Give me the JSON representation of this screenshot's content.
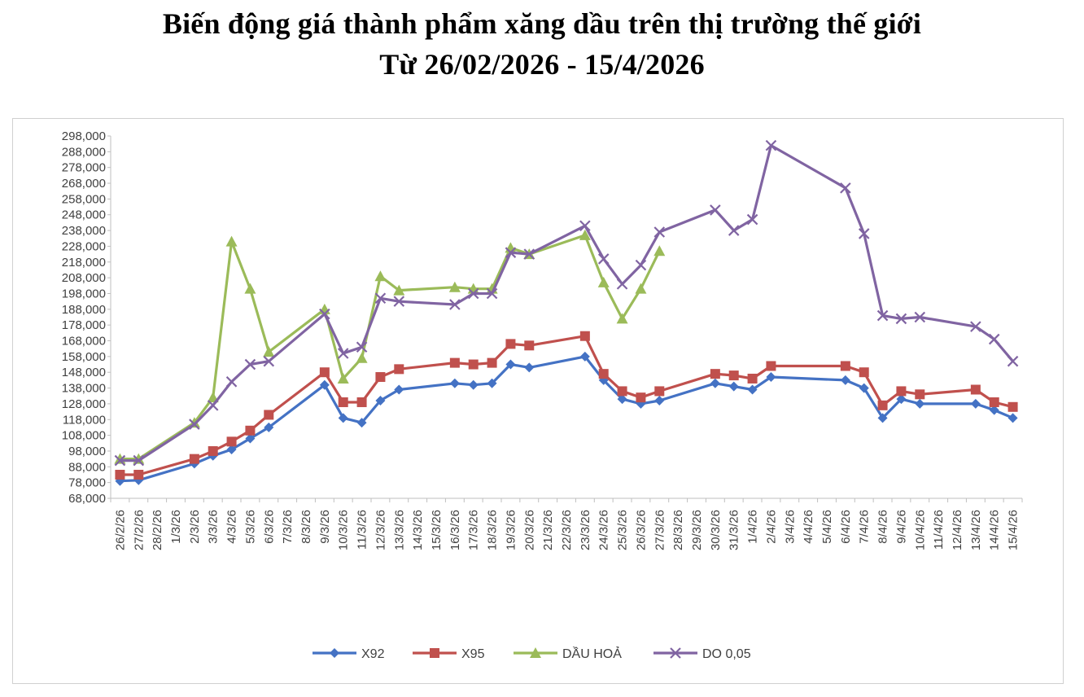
{
  "title_line1": "Biến động giá thành phẩm xăng dầu trên thị trường thế giới",
  "title_line2": "Từ 26/02/2026 - 15/4/2026",
  "chart_data": {
    "type": "line",
    "x": [
      "26/2/26",
      "27/2/26",
      "28/2/26",
      "1/3/26",
      "2/3/26",
      "3/3/26",
      "4/3/26",
      "5/3/26",
      "6/3/26",
      "7/3/26",
      "8/3/26",
      "9/3/26",
      "10/3/26",
      "11/3/26",
      "12/3/26",
      "13/3/26",
      "14/3/26",
      "15/3/26",
      "16/3/26",
      "17/3/26",
      "18/3/26",
      "19/3/26",
      "20/3/26",
      "21/3/26",
      "22/3/26",
      "23/3/26",
      "24/3/26",
      "25/3/26",
      "26/3/26",
      "27/3/26",
      "28/3/26",
      "29/3/26",
      "30/3/26",
      "31/3/26",
      "1/4/26",
      "2/4/26",
      "3/4/26",
      "4/4/26",
      "5/4/26",
      "6/4/26",
      "7/4/26",
      "8/4/26",
      "9/4/26",
      "10/4/26",
      "11/4/26",
      "12/4/26",
      "13/4/26",
      "14/4/26",
      "15/4/26"
    ],
    "yticks": [
      "68,000",
      "78,000",
      "88,000",
      "98,000",
      "108,000",
      "118,000",
      "128,000",
      "138,000",
      "148,000",
      "158,000",
      "168,000",
      "178,000",
      "188,000",
      "198,000",
      "208,000",
      "218,000",
      "228,000",
      "238,000",
      "248,000",
      "258,000",
      "268,000",
      "278,000",
      "288,000",
      "298,000"
    ],
    "ylim": [
      68000,
      298000
    ],
    "legend_position": "bottom",
    "series": [
      {
        "name": "X92",
        "color": "#4472C4",
        "marker": "diamond",
        "points": [
          [
            0,
            79000
          ],
          [
            1,
            79500
          ],
          [
            4,
            90000
          ],
          [
            5,
            95000
          ],
          [
            6,
            99000
          ],
          [
            7,
            106000
          ],
          [
            8,
            113000
          ],
          [
            11,
            140000
          ],
          [
            12,
            119000
          ],
          [
            13,
            116000
          ],
          [
            14,
            130000
          ],
          [
            15,
            137000
          ],
          [
            18,
            141000
          ],
          [
            19,
            140000
          ],
          [
            20,
            141000
          ],
          [
            21,
            153000
          ],
          [
            22,
            151000
          ],
          [
            25,
            158000
          ],
          [
            26,
            143000
          ],
          [
            27,
            131000
          ],
          [
            28,
            128000
          ],
          [
            29,
            130000
          ],
          [
            32,
            141000
          ],
          [
            33,
            139000
          ],
          [
            34,
            137000
          ],
          [
            35,
            145000
          ],
          [
            39,
            143000
          ],
          [
            40,
            138000
          ],
          [
            41,
            119000
          ],
          [
            42,
            131000
          ],
          [
            43,
            128000
          ],
          [
            46,
            128000
          ],
          [
            47,
            124000
          ],
          [
            48,
            119000
          ]
        ]
      },
      {
        "name": "X95",
        "color": "#C0504D",
        "marker": "square",
        "points": [
          [
            0,
            83000
          ],
          [
            1,
            83000
          ],
          [
            4,
            93000
          ],
          [
            5,
            98000
          ],
          [
            6,
            104000
          ],
          [
            7,
            111000
          ],
          [
            8,
            121000
          ],
          [
            11,
            148000
          ],
          [
            12,
            129000
          ],
          [
            13,
            129000
          ],
          [
            14,
            145000
          ],
          [
            15,
            150000
          ],
          [
            18,
            154000
          ],
          [
            19,
            153000
          ],
          [
            20,
            154000
          ],
          [
            21,
            166000
          ],
          [
            22,
            165000
          ],
          [
            25,
            171000
          ],
          [
            26,
            147000
          ],
          [
            27,
            136000
          ],
          [
            28,
            132000
          ],
          [
            29,
            136000
          ],
          [
            32,
            147000
          ],
          [
            33,
            146000
          ],
          [
            34,
            144000
          ],
          [
            35,
            152000
          ],
          [
            39,
            152000
          ],
          [
            40,
            148000
          ],
          [
            41,
            127000
          ],
          [
            42,
            136000
          ],
          [
            43,
            134000
          ],
          [
            46,
            137000
          ],
          [
            47,
            129000
          ],
          [
            48,
            126000
          ]
        ]
      },
      {
        "name": "DẦU HOẢ",
        "color": "#9BBB59",
        "marker": "triangle",
        "points": [
          [
            0,
            93000
          ],
          [
            1,
            93000
          ],
          [
            4,
            116000
          ],
          [
            5,
            132000
          ],
          [
            6,
            231000
          ],
          [
            7,
            201000
          ],
          [
            8,
            161000
          ],
          [
            11,
            188000
          ],
          [
            12,
            144000
          ],
          [
            13,
            157000
          ],
          [
            14,
            209000
          ],
          [
            15,
            200000
          ],
          [
            18,
            202000
          ],
          [
            19,
            201000
          ],
          [
            20,
            201000
          ],
          [
            21,
            227000
          ],
          [
            22,
            223000
          ],
          [
            25,
            235000
          ],
          [
            26,
            205000
          ],
          [
            27,
            182000
          ],
          [
            28,
            201000
          ],
          [
            29,
            225000
          ]
        ]
      },
      {
        "name": "DO 0,05",
        "color": "#8064A2",
        "marker": "x",
        "points": [
          [
            0,
            92000
          ],
          [
            1,
            92000
          ],
          [
            4,
            115000
          ],
          [
            5,
            127000
          ],
          [
            6,
            142000
          ],
          [
            7,
            153000
          ],
          [
            8,
            155000
          ],
          [
            11,
            185000
          ],
          [
            12,
            160000
          ],
          [
            13,
            164000
          ],
          [
            14,
            195000
          ],
          [
            15,
            193000
          ],
          [
            18,
            191000
          ],
          [
            19,
            198000
          ],
          [
            20,
            198000
          ],
          [
            21,
            224000
          ],
          [
            22,
            223000
          ],
          [
            25,
            241000
          ],
          [
            26,
            220000
          ],
          [
            27,
            204000
          ],
          [
            28,
            216000
          ],
          [
            29,
            237000
          ],
          [
            32,
            251000
          ],
          [
            33,
            238000
          ],
          [
            34,
            245000
          ],
          [
            35,
            292000
          ],
          [
            39,
            265000
          ],
          [
            40,
            236000
          ],
          [
            41,
            184000
          ],
          [
            42,
            182000
          ],
          [
            43,
            183000
          ],
          [
            46,
            177000
          ],
          [
            47,
            169000
          ],
          [
            48,
            155000
          ]
        ]
      }
    ]
  }
}
